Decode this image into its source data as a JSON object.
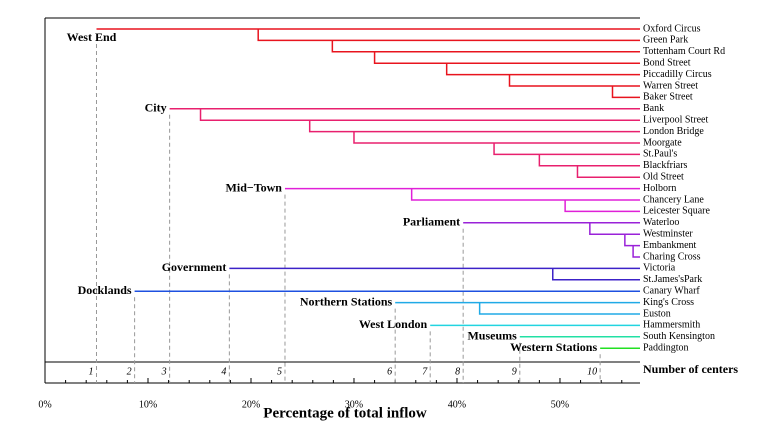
{
  "chart_data": {
    "type": "dendrogram",
    "xlabel": "Percentage of total inflow",
    "x2label": "Number of centers",
    "xlim": [
      0,
      57.77
    ],
    "xticks": [
      {
        "value": 0,
        "label": "0%"
      },
      {
        "value": 10,
        "label": "10%"
      },
      {
        "value": 20,
        "label": "20%"
      },
      {
        "value": 30,
        "label": "30%"
      },
      {
        "value": 40,
        "label": "40%"
      },
      {
        "value": 50,
        "label": "50%"
      }
    ],
    "clusters": [
      {
        "name": "West End",
        "number": 1,
        "color": "#e8141e",
        "x": 5.0,
        "stations": [
          "Oxford Circus",
          "Green Park",
          "Tottenham Court Rd",
          "Bond Street",
          "Piccadilly Circus",
          "Warren Street",
          "Baker Street"
        ],
        "splits": [
          20.7,
          27.9,
          32.0,
          39.0,
          45.1,
          55.1
        ]
      },
      {
        "name": "City",
        "number": 3,
        "color": "#e8206e",
        "x": 12.1,
        "stations": [
          "Bank",
          "Liverpool Street",
          "London Bridge",
          "Moorgate",
          "St.Paul's",
          "Blackfriars",
          "Old Street"
        ],
        "splits": [
          15.1,
          25.7,
          30.0,
          43.6,
          48.0,
          51.7
        ]
      },
      {
        "name": "Mid−Town",
        "number": 5,
        "color": "#e020d8",
        "x": 23.3,
        "stations": [
          "Holborn",
          "Chancery Lane",
          "Leicester Square"
        ],
        "splits": [
          35.6,
          50.5
        ]
      },
      {
        "name": "Parliament",
        "number": 8,
        "color": "#9a22d8",
        "x": 40.6,
        "stations": [
          "Waterloo",
          "Westminster",
          "Embankment",
          "Charing Cross"
        ],
        "splits": [
          52.9,
          56.3,
          57.1
        ]
      },
      {
        "name": "Government",
        "number": 4,
        "color": "#3c22c8",
        "x": 17.9,
        "stations": [
          "Victoria",
          "St.James'sPark"
        ],
        "splits": [
          49.3
        ]
      },
      {
        "name": "Docklands",
        "number": 2,
        "color": "#1e50e0",
        "x": 8.7,
        "stations": [
          "Canary Wharf"
        ],
        "splits": []
      },
      {
        "name": "Northern Stations",
        "number": 6,
        "color": "#20aae6",
        "x": 34.0,
        "stations": [
          "King's Cross",
          "Euston"
        ],
        "splits": [
          42.2
        ]
      },
      {
        "name": "West London",
        "number": 7,
        "color": "#22d4e0",
        "x": 37.4,
        "stations": [
          "Hammersmith"
        ],
        "splits": []
      },
      {
        "name": "Museums",
        "number": 9,
        "color": "#22e0a4",
        "x": 46.1,
        "stations": [
          "South Kensington"
        ],
        "splits": []
      },
      {
        "name": "Western Stations",
        "number": 10,
        "color": "#22e022",
        "x": 53.9,
        "stations": [
          "Paddington"
        ],
        "splits": []
      }
    ]
  }
}
